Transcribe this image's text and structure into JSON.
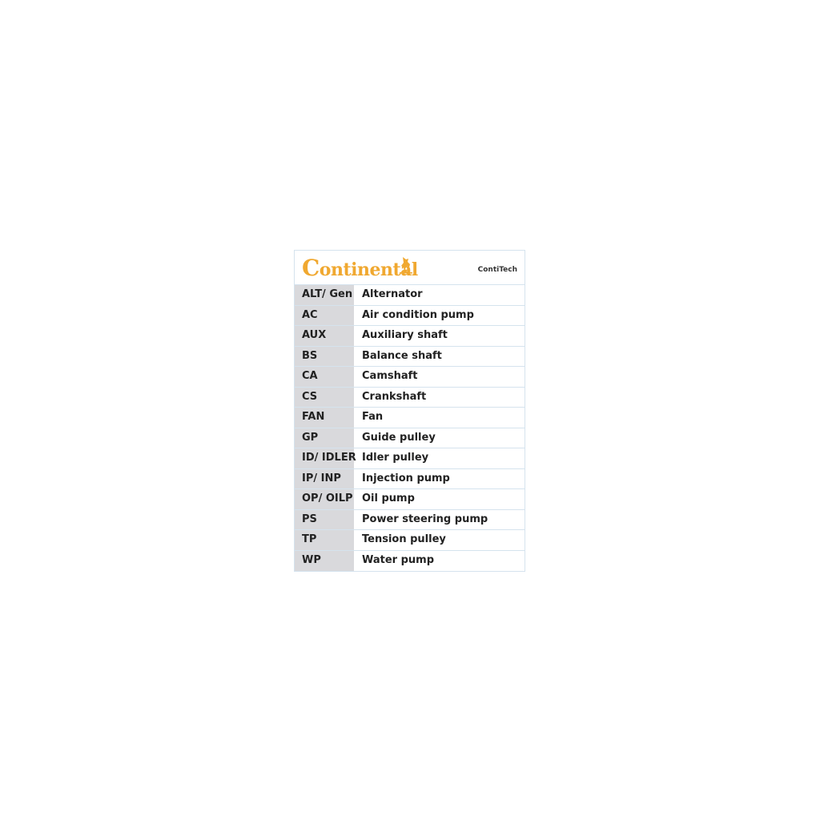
{
  "header": {
    "logo_text": "Continental",
    "sub_brand": "ContiTech",
    "logo_color": "#f0a830"
  },
  "rows": [
    {
      "abbr": "ALT/ Gen",
      "desc": "Alternator"
    },
    {
      "abbr": "AC",
      "desc": "Air condition pump"
    },
    {
      "abbr": "AUX",
      "desc": "Auxiliary shaft"
    },
    {
      "abbr": "BS",
      "desc": "Balance shaft"
    },
    {
      "abbr": "CA",
      "desc": "Camshaft"
    },
    {
      "abbr": "CS",
      "desc": "Crankshaft"
    },
    {
      "abbr": "FAN",
      "desc": "Fan"
    },
    {
      "abbr": "GP",
      "desc": "Guide pulley"
    },
    {
      "abbr": "ID/ IDLER",
      "desc": "Idler pulley"
    },
    {
      "abbr": "IP/ INP",
      "desc": "Injection pump"
    },
    {
      "abbr": "OP/ OILP",
      "desc": "Oil pump"
    },
    {
      "abbr": "PS",
      "desc": "Power steering pump"
    },
    {
      "abbr": "TP",
      "desc": "Tension pulley"
    },
    {
      "abbr": "WP",
      "desc": "Water pump"
    }
  ]
}
